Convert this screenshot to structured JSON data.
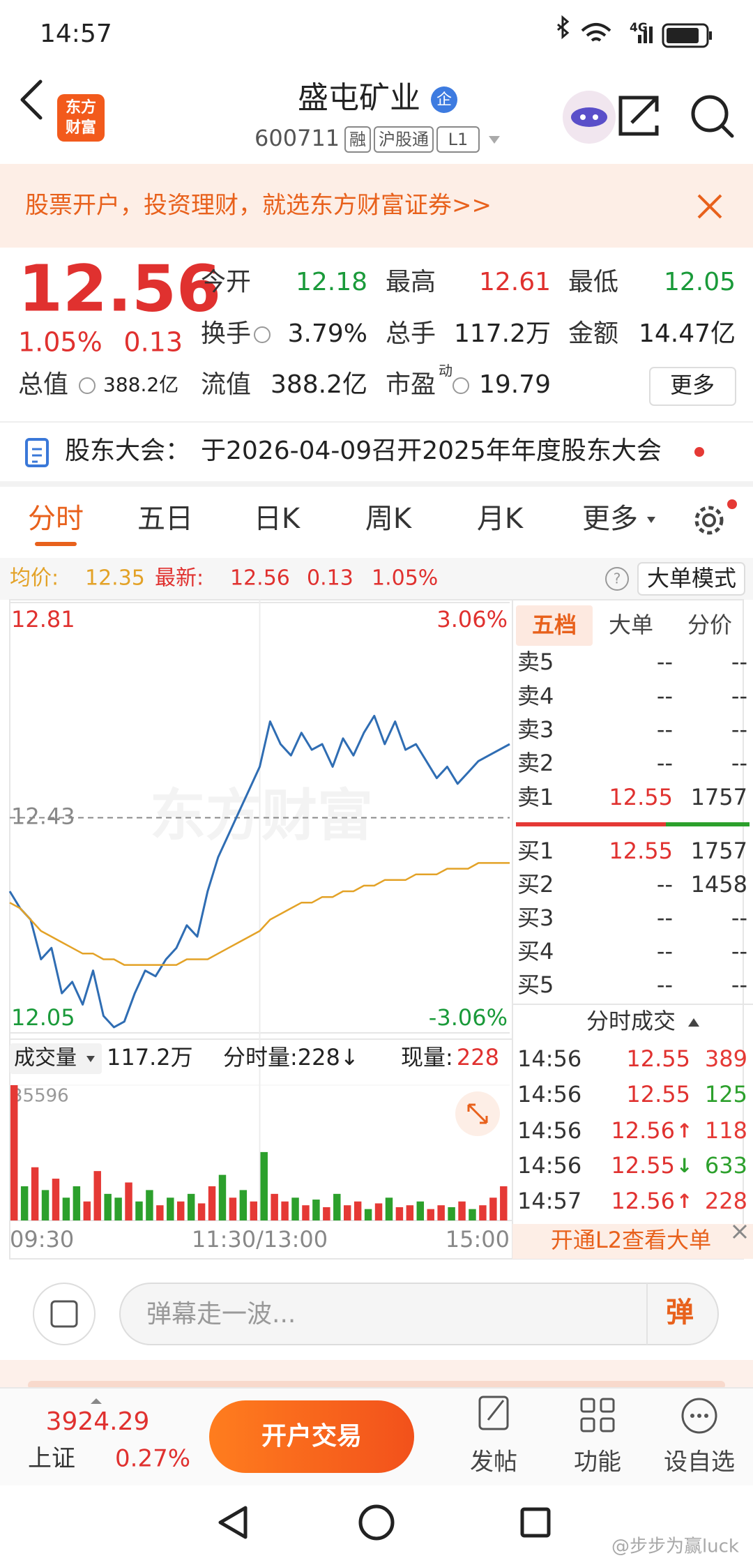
{
  "status_bar": {
    "time": "14:57",
    "network": "4G"
  },
  "header": {
    "logo": [
      "东方",
      "财富"
    ],
    "name": "盛屯矿业",
    "badge": "企",
    "code": "600711",
    "tags": [
      "融",
      "沪股通",
      "L1"
    ]
  },
  "banner": {
    "text": "股票开户，投资理财，就选东方财富证券>>"
  },
  "quote": {
    "price": "12.56",
    "change_pct": "1.05%",
    "change": "0.13",
    "stats": [
      [
        {
          "label": "今开",
          "value": "12.18"
        },
        {
          "label": "最高",
          "value": "12.61"
        },
        {
          "label": "最低",
          "value": "12.05"
        }
      ],
      [
        {
          "label": "换手",
          "value": "3.79%"
        },
        {
          "label": "总手",
          "value": "117.2万"
        },
        {
          "label": "金额",
          "value": "14.47亿"
        }
      ],
      [
        {
          "label": "流值",
          "value": "388.2亿"
        },
        {
          "label": "市盈",
          "sup": "动",
          "value": "19.79"
        }
      ]
    ],
    "total_label": "总值",
    "total": "388.2亿",
    "more": "更多"
  },
  "notice": {
    "label": "股东大会：",
    "text": "于2026-04-09召开2025年年度股东大会"
  },
  "tabs": [
    "分时",
    "五日",
    "日K",
    "周K",
    "月K",
    "更多"
  ],
  "info": {
    "avg_label": "均价:",
    "avg": "12.35",
    "latest_label": "最新:",
    "latest": "12.56",
    "change": "0.13",
    "change_pct": "1.05%",
    "mode": "大单模式"
  },
  "chart_watermark": "东方财富",
  "chart_data": [
    {
      "type": "line",
      "x": [
        0,
        5,
        10,
        15,
        20,
        25,
        30,
        35,
        40,
        45,
        50,
        55,
        60,
        65,
        70,
        75,
        80,
        85,
        90,
        95,
        100,
        105,
        110,
        115,
        120,
        125,
        130,
        135,
        140,
        145,
        150,
        155,
        160,
        165,
        170,
        175,
        180,
        185,
        190,
        195,
        200,
        205,
        210,
        215,
        220,
        225,
        230,
        235,
        240
      ],
      "xlim": [
        0,
        240
      ],
      "xticks": [
        {
          "value": 0,
          "label": "09:30"
        },
        {
          "value": 120,
          "label": "11:30/13:00"
        },
        {
          "value": 240,
          "label": "15:00"
        }
      ],
      "ylim": [
        12.05,
        12.81
      ],
      "yticks": [
        12.81,
        12.43,
        12.05
      ],
      "y2lim": [
        -3.06,
        3.06
      ],
      "y2ticks": [
        {
          "value": 3.06,
          "label": "3.06%"
        },
        {
          "value": -3.06,
          "label": "-3.06%"
        }
      ],
      "series": [
        {
          "color": "#2f6db3",
          "values": [
            12.3,
            12.27,
            12.25,
            12.18,
            12.2,
            12.12,
            12.14,
            12.1,
            12.16,
            12.08,
            12.06,
            12.07,
            12.12,
            12.16,
            12.15,
            12.18,
            12.2,
            12.24,
            12.22,
            12.3,
            12.36,
            12.4,
            12.44,
            12.48,
            12.52,
            12.6,
            12.56,
            12.54,
            12.58,
            12.55,
            12.56,
            12.52,
            12.57,
            12.54,
            12.58,
            12.61,
            12.56,
            12.6,
            12.55,
            12.56,
            12.53,
            12.5,
            12.52,
            12.49,
            12.51,
            12.53,
            12.54,
            12.55,
            12.56
          ]
        },
        {
          "color": "#e3a227",
          "values": [
            12.28,
            12.27,
            12.25,
            12.23,
            12.22,
            12.21,
            12.2,
            12.19,
            12.19,
            12.18,
            12.18,
            12.17,
            12.17,
            12.17,
            12.17,
            12.17,
            12.17,
            12.18,
            12.18,
            12.18,
            12.19,
            12.2,
            12.21,
            12.22,
            12.23,
            12.25,
            12.26,
            12.27,
            12.28,
            12.28,
            12.29,
            12.29,
            12.3,
            12.3,
            12.31,
            12.31,
            12.32,
            12.32,
            12.32,
            12.33,
            12.33,
            12.33,
            12.34,
            12.34,
            12.34,
            12.35,
            12.35,
            12.35,
            12.35
          ]
        }
      ]
    },
    {
      "type": "bar",
      "x": [
        0,
        5,
        10,
        15,
        20,
        25,
        30,
        35,
        40,
        45,
        50,
        55,
        60,
        65,
        70,
        75,
        80,
        85,
        90,
        95,
        100,
        105,
        110,
        115,
        120,
        125,
        130,
        135,
        140,
        145,
        150,
        155,
        160,
        165,
        170,
        175,
        180,
        185,
        190,
        195,
        200,
        205,
        210,
        215,
        220,
        225,
        230,
        235
      ],
      "xlim": [
        0,
        240
      ],
      "ylim": [
        0,
        35596
      ],
      "yticks": [
        35596
      ],
      "values": [
        35596,
        9000,
        14000,
        8000,
        11000,
        6000,
        9000,
        5000,
        13000,
        7000,
        6000,
        10000,
        5000,
        8000,
        4000,
        6000,
        5000,
        7000,
        4500,
        9000,
        12000,
        6000,
        8000,
        5000,
        18000,
        7000,
        5000,
        6000,
        4000,
        5500,
        3500,
        7000,
        4000,
        5000,
        3000,
        4500,
        6000,
        3500,
        4000,
        5000,
        3000,
        4000,
        3500,
        5000,
        3000,
        4000,
        6000,
        9000
      ],
      "colors": [
        "#e53935",
        "#2ca02c",
        "#e53935",
        "#2ca02c",
        "#e53935",
        "#2ca02c",
        "#2ca02c",
        "#e53935",
        "#e53935",
        "#2ca02c",
        "#2ca02c",
        "#e53935",
        "#2ca02c",
        "#2ca02c",
        "#e53935",
        "#2ca02c",
        "#e53935",
        "#2ca02c",
        "#e53935",
        "#e53935",
        "#2ca02c",
        "#e53935",
        "#2ca02c",
        "#e53935",
        "#2ca02c",
        "#e53935",
        "#e53935",
        "#2ca02c",
        "#e53935",
        "#2ca02c",
        "#e53935",
        "#2ca02c",
        "#e53935",
        "#e53935",
        "#2ca02c",
        "#e53935",
        "#2ca02c",
        "#e53935",
        "#e53935",
        "#2ca02c",
        "#e53935",
        "#e53935",
        "#2ca02c",
        "#e53935",
        "#2ca02c",
        "#e53935",
        "#e53935",
        "#e53935"
      ]
    }
  ],
  "volume_header": {
    "label": "成交量",
    "total": "117.2万",
    "tick": "分时量:228↓",
    "current_label": "现量:",
    "current": "228"
  },
  "order_book": {
    "tabs": [
      "五档",
      "大单",
      "分价"
    ],
    "asks": [
      {
        "label": "卖5",
        "price": "--",
        "volume": "--"
      },
      {
        "label": "卖4",
        "price": "--",
        "volume": "--"
      },
      {
        "label": "卖3",
        "price": "--",
        "volume": "--"
      },
      {
        "label": "卖2",
        "price": "--",
        "volume": "--"
      },
      {
        "label": "卖1",
        "price": "12.55",
        "volume": "1757"
      }
    ],
    "bids": [
      {
        "label": "买1",
        "price": "12.55",
        "volume": "1757"
      },
      {
        "label": "买2",
        "price": "--",
        "volume": "1458"
      },
      {
        "label": "买3",
        "price": "--",
        "volume": "--"
      },
      {
        "label": "买4",
        "price": "--",
        "volume": "--"
      },
      {
        "label": "买5",
        "price": "--",
        "volume": "--"
      }
    ]
  },
  "trades": {
    "title": "分时成交",
    "rows": [
      {
        "time": "14:56",
        "price": "12.55",
        "volume": "389",
        "color": "#e53935"
      },
      {
        "time": "14:56",
        "price": "12.55",
        "volume": "125",
        "color": "#2ca02c"
      },
      {
        "time": "14:56",
        "price": "12.56",
        "arrow": "↑",
        "volume": "118",
        "color": "#e53935"
      },
      {
        "time": "14:56",
        "price": "12.55",
        "arrow": "↓",
        "volume": "633",
        "color": "#2ca02c"
      },
      {
        "time": "14:57",
        "price": "12.56",
        "arrow": "↑",
        "volume": "228",
        "color": "#e53935"
      }
    ]
  },
  "l2": "开通L2查看大单",
  "comment": {
    "placeholder": "弹幕走一波...",
    "button": "弹"
  },
  "footer": {
    "index_value": "3924.29",
    "index_name": "上证",
    "index_change": "0.27%",
    "trade": "开户交易",
    "actions": [
      "发帖",
      "功能",
      "设自选"
    ]
  },
  "watermark": "@步步为赢luck"
}
